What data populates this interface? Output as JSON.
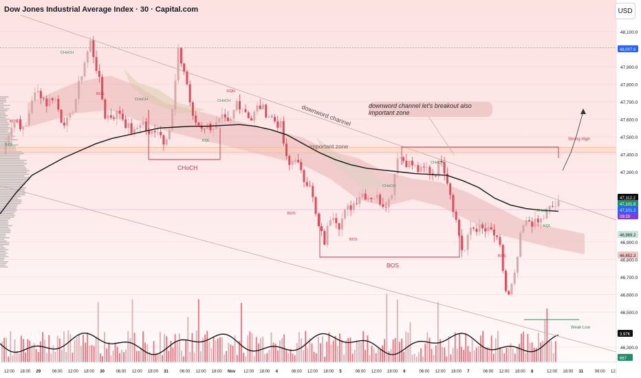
{
  "header": {
    "title": "Dow Jones Industrial Average Index · 30 · Capital.com",
    "currency_button": "USD"
  },
  "colors": {
    "background_top": "#fde6e6",
    "background_bottom": "#ffffff",
    "candle_up": "#d9a8a8",
    "candle_down": "#e04b5a",
    "volume_up": "#d9b0b3",
    "volume_down": "#ee6f7b",
    "moving_average": "#141414",
    "zone_line": "#f2b8a0",
    "structure_line": "#c8324a",
    "choch_label": "#2e8b57",
    "bos_label": "#c8324a",
    "price_badge_current": "#0d0d0d",
    "price_badge_green": "#1f8f6a",
    "price_badge_blue": "#2962ff",
    "price_badge_purple": "#7e3fd8"
  },
  "annotations": {
    "channel_label": "downword channel",
    "callout_text": "downword channel let's breakout also important zone",
    "important_zone": "important zone",
    "choch_big": "CHoCH",
    "bos_big": "BOS",
    "strong_high": "Strong High",
    "weak_low": "Weak Low",
    "small_choch": "CHoCH",
    "small_bos": "BOS",
    "small_eqh": "EQH",
    "small_eql": "EQL"
  },
  "chart_data": {
    "type": "candlestick",
    "title": "Dow Jones Industrial Average Index · 30 · Capital.com",
    "currency": "USD",
    "ylim": [
      46250,
      48200
    ],
    "y_ticks": [
      {
        "value": 48100,
        "label": "48,100.0"
      },
      {
        "value": 47900,
        "label": "47,900.0"
      },
      {
        "value": 47800,
        "label": "47,800.0"
      },
      {
        "value": 47700,
        "label": "47,700.0"
      },
      {
        "value": 47600,
        "label": "47,600.0"
      },
      {
        "value": 47500,
        "label": "47,500.0"
      },
      {
        "value": 47400,
        "label": "47,400.0"
      },
      {
        "value": 47300,
        "label": "47,300.0"
      },
      {
        "value": 46900,
        "label": "46,900.0"
      },
      {
        "value": 46800,
        "label": "46,800.0"
      },
      {
        "value": 46700,
        "label": "46,700.0"
      },
      {
        "value": 46600,
        "label": "46,600.0"
      },
      {
        "value": 46500,
        "label": "46,500.0"
      },
      {
        "value": 46300,
        "label": "46,300.0"
      }
    ],
    "x_ticks": [
      "12:00",
      "18:00",
      "29",
      "06:00",
      "12:00",
      "18:00",
      "30",
      "06:00",
      "12:00",
      "18:00",
      "31",
      "06:00",
      "12:00",
      "18:00",
      "Nov",
      "12:00",
      "18:00",
      "4",
      "06:00",
      "12:00",
      "18:00",
      "5",
      "06:00",
      "12:00",
      "18:00",
      "6",
      "06:00",
      "12:00",
      "18:00",
      "7",
      "06:00",
      "12:00",
      "18:00",
      "8",
      "12:00",
      "18:00",
      "11",
      "06:00",
      "12:"
    ],
    "price_badges": [
      {
        "value": 48007.6,
        "label": "48,007.6",
        "style": "blue"
      },
      {
        "value": 47112.2,
        "label": "47,112.2",
        "style": "current"
      },
      {
        "value": 47101.8,
        "label": "47,101.8",
        "style": "green"
      },
      {
        "value": 47101.3,
        "label": "47,101.3",
        "style": "blue"
      },
      {
        "value": 47050,
        "label": "09:28",
        "style": "purple"
      },
      {
        "value": 46969.2,
        "label": "46,969.2",
        "style": "green_light"
      },
      {
        "value": 46852.3,
        "label": "46,852.3",
        "style": "red_light"
      }
    ],
    "volume_badges": [
      {
        "label": "3.97K",
        "style": "current"
      },
      {
        "label": "667",
        "style": "green"
      }
    ],
    "levels": {
      "dashed_high": 48007.6,
      "important_zone": [
        47410,
        47440
      ],
      "choch_box_low": 47390,
      "bos_low": 46850,
      "breakout_box_top": 47460,
      "strong_high": 47460,
      "weak_low": 46490
    },
    "series": [
      {
        "name": "candles",
        "close_path": [
          47400,
          47560,
          47600,
          47520,
          47720,
          47760,
          47690,
          47740,
          47600,
          47580,
          47720,
          47900,
          48040,
          47860,
          47620,
          47620,
          47640,
          47560,
          47520,
          47600,
          47500,
          47560,
          47480,
          47560,
          47980,
          47850,
          47600,
          47560,
          47560,
          47560,
          47600,
          47560,
          47700,
          47660,
          47600,
          47680,
          47640,
          47600,
          47560,
          47320,
          47390,
          47260,
          47240,
          47000,
          46900,
          47080,
          47000,
          47080,
          47120,
          47180,
          47160,
          47160,
          47120,
          47140,
          47400,
          47360,
          47340,
          47300,
          47320,
          47280,
          47380,
          47220,
          47020,
          46820,
          46980,
          46980,
          46960,
          46960,
          46860,
          46560,
          46700,
          46980,
          47020,
          47000,
          47040,
          47100,
          47112
        ]
      },
      {
        "name": "moving average",
        "values": [
          47060,
          47180,
          47280,
          47330,
          47380,
          47420,
          47460,
          47490,
          47510,
          47530,
          47550,
          47555,
          47560,
          47560,
          47565,
          47570,
          47560,
          47540,
          47510,
          47460,
          47410,
          47370,
          47340,
          47320,
          47310,
          47300,
          47290,
          47285,
          47280,
          47250,
          47210,
          47150,
          47110,
          47090,
          47080,
          47075
        ]
      }
    ],
    "volume": {
      "ylim": [
        0,
        4500
      ]
    }
  }
}
